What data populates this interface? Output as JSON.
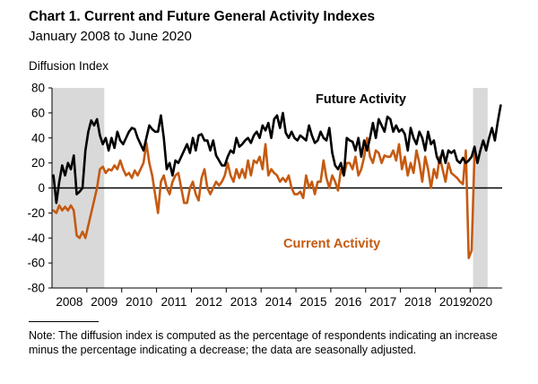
{
  "chart_data": {
    "type": "line",
    "title": "Chart 1. Current and Future General Activity Indexes",
    "subtitle": "January 2008 to June 2020",
    "ylabel": "Diffusion Index",
    "ylim": [
      -80,
      80
    ],
    "yticks": [
      -80,
      -60,
      -40,
      -20,
      0,
      20,
      40,
      60,
      80
    ],
    "x_tick_labels": [
      "2008",
      "2009",
      "2010",
      "2011",
      "2012",
      "2013",
      "2014",
      "2015",
      "2016",
      "2017",
      "2018",
      "2019",
      "2020"
    ],
    "shaded_periods": [
      {
        "start": "2008-01",
        "end": "2009-06"
      },
      {
        "start": "2020-02",
        "end": "2020-06"
      }
    ],
    "zero_line": true,
    "series": [
      {
        "name": "Future Activity",
        "color": "#000000",
        "start": "2008-01",
        "values": [
          10,
          -12,
          5,
          18,
          10,
          20,
          15,
          26,
          -5,
          -3,
          0,
          30,
          45,
          54,
          50,
          55,
          42,
          35,
          40,
          30,
          40,
          32,
          45,
          38,
          35,
          40,
          45,
          48,
          47,
          40,
          35,
          30,
          40,
          50,
          47,
          45,
          45,
          58,
          40,
          15,
          20,
          10,
          22,
          20,
          25,
          30,
          35,
          28,
          40,
          30,
          42,
          43,
          38,
          38,
          30,
          38,
          26,
          22,
          18,
          18,
          25,
          30,
          28,
          40,
          33,
          35,
          38,
          40,
          36,
          42,
          45,
          40,
          50,
          46,
          52,
          40,
          55,
          58,
          48,
          60,
          44,
          40,
          45,
          40,
          38,
          42,
          40,
          38,
          50,
          42,
          36,
          38,
          45,
          40,
          38,
          48,
          28,
          18,
          15,
          20,
          10,
          40,
          38,
          37,
          30,
          40,
          25,
          38,
          30,
          40,
          52,
          40,
          55,
          50,
          45,
          57,
          55,
          45,
          50,
          45,
          47,
          43,
          30,
          48,
          40,
          35,
          45,
          40,
          30,
          45,
          35,
          38,
          25,
          20,
          30,
          20,
          30,
          28,
          30,
          22,
          20,
          24,
          20,
          22,
          25,
          33,
          20,
          30,
          38,
          30,
          40,
          48,
          38,
          53,
          66
        ]
      },
      {
        "name": "Current Activity",
        "color": "#c55a11",
        "start": "2008-01",
        "values": [
          -18,
          -20,
          -14,
          -18,
          -15,
          -18,
          -14,
          -18,
          -38,
          -40,
          -35,
          -40,
          -30,
          -20,
          -10,
          0,
          15,
          17,
          12,
          15,
          14,
          18,
          15,
          22,
          15,
          10,
          12,
          8,
          14,
          10,
          15,
          20,
          36,
          20,
          10,
          -5,
          -20,
          5,
          10,
          0,
          -5,
          5,
          10,
          12,
          0,
          -12,
          -12,
          0,
          5,
          -5,
          -10,
          8,
          15,
          0,
          -5,
          0,
          5,
          2,
          5,
          10,
          20,
          10,
          5,
          15,
          8,
          15,
          8,
          22,
          10,
          22,
          20,
          25,
          15,
          35,
          10,
          15,
          12,
          10,
          5,
          8,
          5,
          10,
          0,
          -5,
          -5,
          -3,
          -8,
          10,
          0,
          5,
          -5,
          5,
          5,
          22,
          8,
          0,
          10,
          5,
          -2,
          15,
          10,
          20,
          20,
          15,
          25,
          10,
          15,
          25,
          40,
          25,
          20,
          30,
          28,
          20,
          26,
          25,
          25,
          30,
          22,
          35,
          15,
          25,
          10,
          20,
          12,
          30,
          20,
          5,
          25,
          15,
          0,
          15,
          8,
          25,
          15,
          5,
          20,
          12,
          10,
          8,
          5,
          3,
          30,
          -56,
          -50,
          28
        ]
      }
    ],
    "annotations": [
      {
        "text": "Future Activity",
        "series": "Future Activity"
      },
      {
        "text": "Current Activity",
        "series": "Current Activity"
      }
    ],
    "note": "Note: The diffusion index is computed as the percentage of respondents indicating an increase minus the percentage indicating a decrease; the data are seasonally adjusted."
  }
}
